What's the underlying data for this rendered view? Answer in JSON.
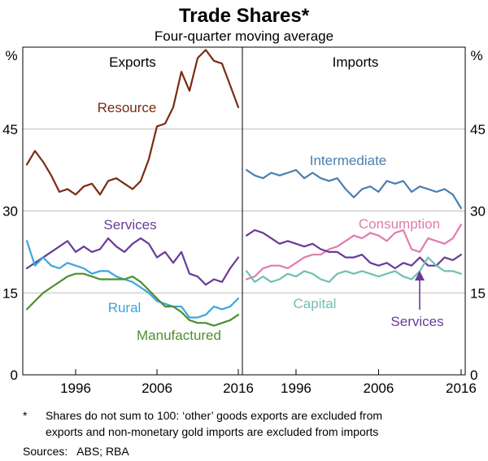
{
  "header": {
    "title": "Trade Shares*",
    "subtitle": "Four-quarter moving average"
  },
  "axes": {
    "left_unit": "%",
    "right_unit": "%"
  },
  "footnote": {
    "marker": "*",
    "line1": "Shares do not sum to 100: ‘other’ goods exports are excluded from",
    "line2": "exports and non-monetary gold imports are excluded from imports",
    "sources": "Sources:   ABS; RBA"
  },
  "colors": {
    "resource": "#7a2c12",
    "services": "#6a3a9a",
    "rural": "#3aa6dd",
    "manufactured": "#4f8f2f",
    "intermediate": "#4a7fb0",
    "consumption": "#e07bb0",
    "capital": "#6fc1b2",
    "imp_services": "#6a3a9a",
    "grid": "#bdbdbd"
  },
  "chart_data": [
    {
      "type": "line",
      "panel": "Exports",
      "title": "Exports",
      "ylim": [
        0,
        60
      ],
      "yticks": [
        0,
        15,
        30,
        45
      ],
      "xlim": [
        1989.5,
        2016.5
      ],
      "xticks": [
        1996,
        2006,
        2016
      ],
      "grid": true,
      "series": [
        {
          "name": "Resource",
          "color_key": "resource",
          "x": [
            1990,
            1991,
            1992,
            1993,
            1994,
            1995,
            1996,
            1997,
            1998,
            1999,
            2000,
            2001,
            2002,
            2003,
            2004,
            2005,
            2006,
            2007,
            2008,
            2009,
            2010,
            2011,
            2012,
            2013,
            2014,
            2015,
            2016
          ],
          "values": [
            38.5,
            41,
            39,
            36.5,
            33.5,
            34,
            33,
            34.5,
            35,
            33,
            35.5,
            36,
            35,
            34,
            35.5,
            39.5,
            45.5,
            46,
            49,
            55.5,
            52,
            58,
            59.5,
            57.5,
            57,
            53,
            49
          ]
        },
        {
          "name": "Services",
          "color_key": "services",
          "x": [
            1990,
            1991,
            1992,
            1993,
            1994,
            1995,
            1996,
            1997,
            1998,
            1999,
            2000,
            2001,
            2002,
            2003,
            2004,
            2005,
            2006,
            2007,
            2008,
            2009,
            2010,
            2011,
            2012,
            2013,
            2014,
            2015,
            2016
          ],
          "values": [
            19.5,
            20.5,
            21.5,
            22.5,
            23.5,
            24.5,
            22.5,
            23.5,
            22.5,
            23,
            25,
            23.5,
            22.5,
            24,
            25,
            24,
            21.5,
            22.5,
            20.5,
            22.5,
            18.5,
            18,
            16.5,
            17.5,
            17,
            19.5,
            21.5
          ]
        },
        {
          "name": "Rural",
          "color_key": "rural",
          "x": [
            1990,
            1991,
            1992,
            1993,
            1994,
            1995,
            1996,
            1997,
            1998,
            1999,
            2000,
            2001,
            2002,
            2003,
            2004,
            2005,
            2006,
            2007,
            2008,
            2009,
            2010,
            2011,
            2012,
            2013,
            2014,
            2015,
            2016
          ],
          "values": [
            24.5,
            20,
            21.5,
            20,
            19.5,
            20.5,
            20,
            19.5,
            18.5,
            19,
            19,
            18,
            17.5,
            17,
            16,
            15,
            13.5,
            13,
            12.5,
            12.5,
            10.5,
            10.5,
            11,
            12.5,
            12,
            12.5,
            14
          ]
        },
        {
          "name": "Manufactured",
          "color_key": "manufactured",
          "x": [
            1990,
            1991,
            1992,
            1993,
            1994,
            1995,
            1996,
            1997,
            1998,
            1999,
            2000,
            2001,
            2002,
            2003,
            2004,
            2005,
            2006,
            2007,
            2008,
            2009,
            2010,
            2011,
            2012,
            2013,
            2014,
            2015,
            2016
          ],
          "values": [
            12,
            13.5,
            15,
            16,
            17,
            18,
            18.5,
            18.5,
            18,
            17.5,
            17.5,
            17.5,
            17.5,
            18,
            17,
            15.5,
            14,
            12.5,
            12.5,
            11.5,
            10,
            9.5,
            9.5,
            9,
            9.5,
            10,
            11
          ]
        }
      ],
      "labels": [
        "Resource",
        "Services",
        "Rural",
        "Manufactured"
      ]
    },
    {
      "type": "line",
      "panel": "Imports",
      "title": "Imports",
      "ylim": [
        0,
        60
      ],
      "yticks": [
        0,
        15,
        30,
        45
      ],
      "xlim": [
        1989.5,
        2016.5
      ],
      "xticks": [
        1996,
        2006,
        2016
      ],
      "grid": true,
      "series": [
        {
          "name": "Intermediate",
          "color_key": "intermediate",
          "x": [
            1990,
            1991,
            1992,
            1993,
            1994,
            1995,
            1996,
            1997,
            1998,
            1999,
            2000,
            2001,
            2002,
            2003,
            2004,
            2005,
            2006,
            2007,
            2008,
            2009,
            2010,
            2011,
            2012,
            2013,
            2014,
            2015,
            2016
          ],
          "values": [
            37.5,
            36.5,
            36,
            37,
            36.5,
            37,
            37.5,
            36,
            37,
            36,
            35.5,
            36,
            34,
            32.5,
            34,
            34.5,
            33.5,
            35.5,
            35,
            35.5,
            33.5,
            34.5,
            34,
            33.5,
            34,
            33,
            30.5
          ]
        },
        {
          "name": "Consumption",
          "color_key": "consumption",
          "x": [
            1990,
            1991,
            1992,
            1993,
            1994,
            1995,
            1996,
            1997,
            1998,
            1999,
            2000,
            2001,
            2002,
            2003,
            2004,
            2005,
            2006,
            2007,
            2008,
            2009,
            2010,
            2011,
            2012,
            2013,
            2014,
            2015,
            2016
          ],
          "values": [
            17.5,
            18,
            19.5,
            20,
            20,
            19.5,
            20.5,
            21.5,
            22,
            22,
            23,
            23.5,
            24.5,
            25.5,
            25,
            26,
            25.5,
            24.5,
            26,
            26.5,
            23,
            22.5,
            25,
            24.5,
            24,
            25,
            27.5
          ]
        },
        {
          "name": "Services",
          "color_key": "imp_services",
          "x": [
            1990,
            1991,
            1992,
            1993,
            1994,
            1995,
            1996,
            1997,
            1998,
            1999,
            2000,
            2001,
            2002,
            2003,
            2004,
            2005,
            2006,
            2007,
            2008,
            2009,
            2010,
            2011,
            2012,
            2013,
            2014,
            2015,
            2016
          ],
          "values": [
            25.5,
            26.5,
            26,
            25,
            24,
            24.5,
            24,
            23.5,
            24,
            23,
            22.5,
            22.5,
            21.5,
            21.5,
            22,
            20.5,
            20,
            20.5,
            19.5,
            20.5,
            20,
            21.5,
            20,
            20,
            21.5,
            21,
            22
          ]
        },
        {
          "name": "Capital",
          "color_key": "capital",
          "x": [
            1990,
            1991,
            1992,
            1993,
            1994,
            1995,
            1996,
            1997,
            1998,
            1999,
            2000,
            2001,
            2002,
            2003,
            2004,
            2005,
            2006,
            2007,
            2008,
            2009,
            2010,
            2011,
            2012,
            2013,
            2014,
            2015,
            2016
          ],
          "values": [
            19,
            17,
            18,
            17,
            17.5,
            18.5,
            18,
            19,
            18.5,
            17.5,
            17,
            18.5,
            19,
            18.5,
            19,
            18.5,
            18,
            18.5,
            19,
            18,
            17.5,
            19,
            21.5,
            20,
            19,
            19,
            18.5
          ]
        }
      ],
      "labels": [
        "Intermediate",
        "Consumption",
        "Capital",
        "Services"
      ]
    }
  ]
}
